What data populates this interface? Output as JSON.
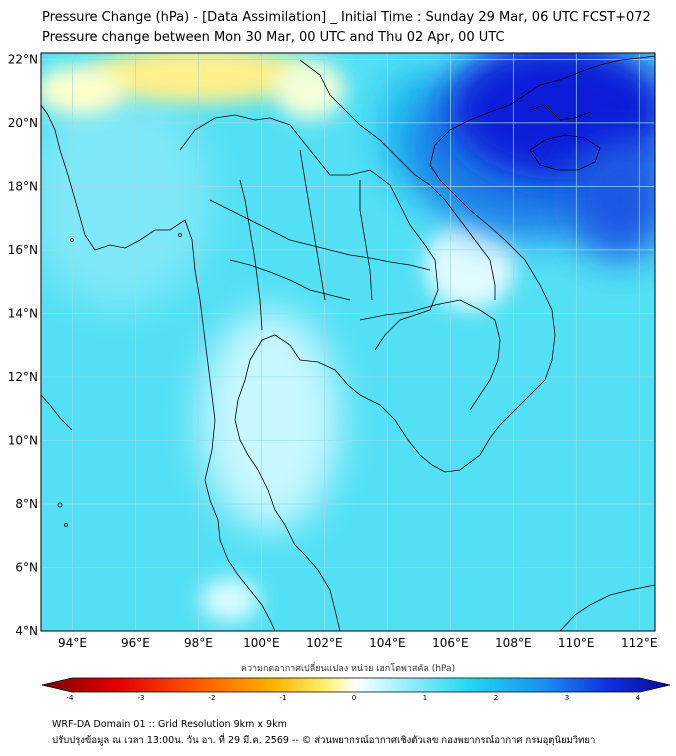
{
  "header": {
    "title": "Pressure Change (hPa) - [Data Assimilation] _ Initial Time : Sunday 29 Mar, 06 UTC FCST+072",
    "subtitle": "Pressure change between Mon 30 Mar, 00 UTC and Thu 02 Apr, 00 UTC"
  },
  "map": {
    "lon_labels": [
      "94°E",
      "96°E",
      "98°E",
      "100°E",
      "102°E",
      "104°E",
      "106°E",
      "108°E",
      "110°E",
      "112°E"
    ],
    "lat_labels": [
      "22°N",
      "20°N",
      "18°N",
      "16°N",
      "14°N",
      "12°N",
      "10°N",
      "8°N",
      "6°N",
      "4°N"
    ],
    "lon_range": [
      93,
      112.5
    ],
    "lat_range": [
      4,
      22.2
    ],
    "background_color": "#53e0f4",
    "regions": [
      {
        "label": "north-yellow-high",
        "color": "#fff08a"
      },
      {
        "label": "east-blue-low",
        "color": "#0a1fd8"
      },
      {
        "label": "pale-central",
        "color": "#d8fbff"
      }
    ]
  },
  "colorbar": {
    "label": "ความกดอากาศเปลี่ยนแปลง หน่วย เฮกโตพาสคัล (hPa)",
    "min": -4,
    "max": 4,
    "tick_labels": [
      "-4",
      "-3",
      "-2",
      "-1",
      "0",
      "1",
      "2",
      "3",
      "4"
    ],
    "colors": [
      "#7a0000",
      "#e00000",
      "#ff5a00",
      "#ffb400",
      "#fff06a",
      "#ffffff",
      "#aef4ff",
      "#22d8f0",
      "#1a8ff0",
      "#1030e0",
      "#0a0a9a"
    ]
  },
  "footer": {
    "line1": "WRF-DA Domain 01 :: Grid Resolution 9km x 9km",
    "line2": "ปรับปรุงข้อมูล ณ เวลา 13:00น. วัน อา. ที่ 29 มี.ค. 2569 -- © ส่วนพยากรณ์อากาศเชิงตัวเลข กองพยากรณ์อากาศ กรมอุตุนิยมวิทยา"
  }
}
